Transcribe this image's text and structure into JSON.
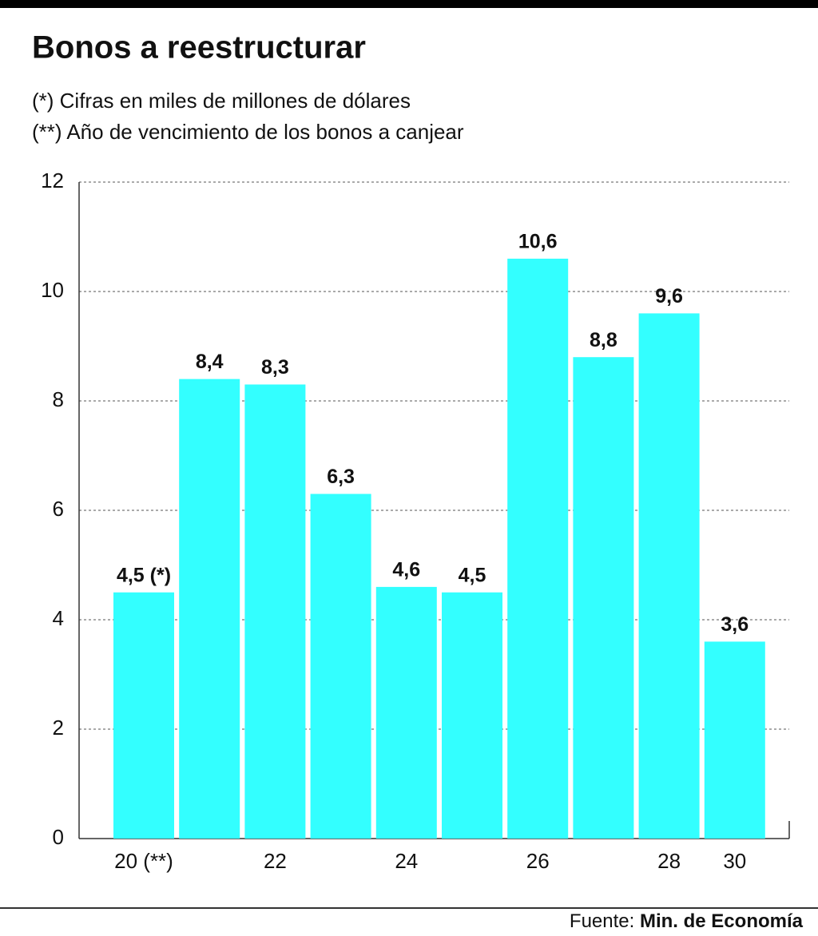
{
  "chart_data": {
    "type": "bar",
    "title": "Bonos a reestructurar",
    "subtitle": [
      "(*) Cifras en miles de millones de dólares",
      "(**) Año de vencimiento de los bonos a canjear"
    ],
    "categories": [
      "20 (**)",
      null,
      "22",
      null,
      "24",
      null,
      "26",
      null,
      "28",
      "30"
    ],
    "values": [
      4.5,
      8.4,
      8.3,
      6.3,
      4.6,
      4.5,
      10.6,
      8.8,
      9.6,
      3.6
    ],
    "value_labels": [
      "4,5 (*)",
      "8,4",
      "8,3",
      "6,3",
      "4,6",
      "4,5",
      "10,6",
      "8,8",
      "9,6",
      "3,6"
    ],
    "color": "#33ffff",
    "ylim": [
      0,
      12
    ],
    "yticks": [
      0,
      2,
      4,
      6,
      8,
      10,
      12
    ],
    "grid": true,
    "source": {
      "label": "Fuente:",
      "name": "Min. de Economía"
    }
  }
}
